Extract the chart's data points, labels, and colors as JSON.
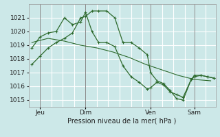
{
  "background_color": "#cce8e8",
  "plot_bg_color": "#cce8e8",
  "grid_color": "#ffffff",
  "line_color": "#2d6a2d",
  "xlim": [
    0,
    11.5
  ],
  "ylim": [
    1014.5,
    1022.0
  ],
  "yticks": [
    1015,
    1016,
    1017,
    1018,
    1019,
    1020,
    1021
  ],
  "xtick_positions": [
    0.7,
    3.5,
    7.5,
    10.2
  ],
  "xtick_labels": [
    "Jeu",
    "Dim",
    "Ven",
    "Sam"
  ],
  "xlabel": "Pression niveau de la mer( hPa )",
  "vlines": [
    0.7,
    3.5,
    7.5,
    10.2
  ],
  "xgrid_positions": [
    0.7,
    1.4,
    2.1,
    2.8,
    3.5,
    4.2,
    4.9,
    5.6,
    6.3,
    7.0,
    7.5,
    8.2,
    8.9,
    9.6,
    10.2,
    10.9,
    11.5
  ],
  "line1": {
    "x": [
      0.2,
      0.7,
      1.2,
      1.7,
      2.2,
      2.7,
      3.2,
      3.5,
      3.9,
      4.3,
      4.8,
      5.3,
      5.8,
      6.3,
      6.8,
      7.3,
      7.5,
      7.9,
      8.3,
      8.7,
      9.1,
      9.5,
      10.0,
      10.2,
      10.6,
      11.0,
      11.4
    ],
    "y": [
      1017.6,
      1018.2,
      1018.8,
      1019.2,
      1019.5,
      1019.9,
      1021.0,
      1021.1,
      1021.5,
      1021.5,
      1021.5,
      1021.0,
      1019.2,
      1019.2,
      1018.8,
      1018.3,
      1017.0,
      1016.4,
      1016.2,
      1015.7,
      1015.1,
      1015.0,
      1016.5,
      1016.8,
      1016.8,
      1016.7,
      1016.6
    ]
  },
  "line2": {
    "x": [
      0.2,
      0.7,
      1.2,
      1.7,
      2.2,
      2.7,
      3.2,
      3.5,
      3.9,
      4.3,
      4.8,
      5.3,
      5.8,
      6.3,
      6.8,
      7.3,
      7.5,
      7.9,
      8.3,
      8.7,
      9.1,
      9.5,
      10.0,
      10.2,
      10.6,
      11.0,
      11.4
    ],
    "y": [
      1018.8,
      1019.6,
      1019.9,
      1020.0,
      1021.0,
      1020.5,
      1020.7,
      1021.4,
      1020.0,
      1019.2,
      1019.2,
      1018.9,
      1017.5,
      1016.7,
      1016.3,
      1015.8,
      1015.9,
      1016.3,
      1016.1,
      1015.6,
      1015.4,
      1015.2,
      1016.5,
      1016.7,
      1016.8,
      1016.7,
      1016.6
    ]
  },
  "line3": {
    "x": [
      0.2,
      1.2,
      2.2,
      3.2,
      4.2,
      5.2,
      6.2,
      7.2,
      8.2,
      9.2,
      10.2,
      11.2
    ],
    "y": [
      1019.2,
      1019.5,
      1019.3,
      1019.0,
      1018.8,
      1018.5,
      1018.1,
      1017.6,
      1017.2,
      1016.8,
      1016.5,
      1016.4
    ]
  }
}
